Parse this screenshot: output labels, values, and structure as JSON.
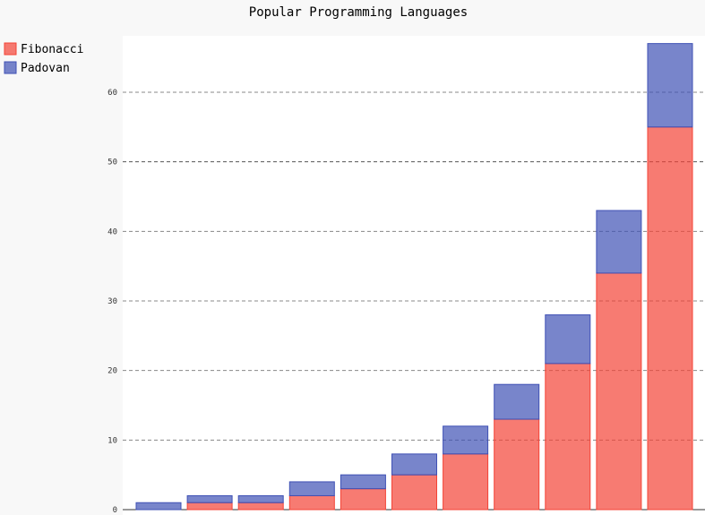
{
  "chart_data": {
    "type": "bar",
    "stacked": true,
    "title": "Popular Programming Languages",
    "xlabel": "",
    "ylabel": "",
    "categories": [
      "",
      "",
      "",
      "",
      "",
      "",
      "",
      "",
      "",
      "",
      ""
    ],
    "series": [
      {
        "name": "Fibonacci",
        "color": "#F44336",
        "values": [
          0,
          1,
          1,
          2,
          3,
          5,
          8,
          13,
          21,
          34,
          55
        ]
      },
      {
        "name": "Padovan",
        "color": "#3F51B5",
        "values": [
          1,
          1,
          1,
          2,
          2,
          3,
          4,
          5,
          7,
          9,
          12
        ]
      }
    ],
    "yticks": [
      0,
      10,
      20,
      30,
      40,
      50,
      60
    ],
    "ylim": [
      0,
      67
    ],
    "grid": true,
    "legend_position": "top-left"
  }
}
